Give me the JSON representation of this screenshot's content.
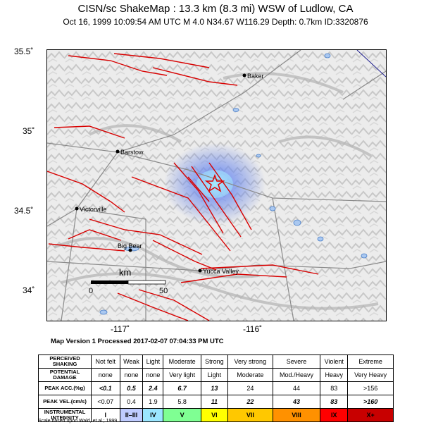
{
  "header": {
    "title": "CISN/sc ShakeMap : 13.3 km (8.3 mi) WSW of Ludlow, CA",
    "subtitle": "Oct 16, 1999 10:09:54 AM UTC   M 4.0   N34.67 W116.29   Depth: 0.7km   ID:3320876"
  },
  "axes": {
    "lat_labels": [
      "35.5˚",
      "35˚",
      "34.5˚",
      "34˚"
    ],
    "lon_labels": [
      "-117˚",
      "-116˚"
    ]
  },
  "map": {
    "cities": [
      {
        "name": "Baker"
      },
      {
        "name": "Barstow"
      },
      {
        "name": "Victorville"
      },
      {
        "name": "Big Bear"
      },
      {
        "name": "Yucca Valley"
      }
    ],
    "scalebar": {
      "unit": "km",
      "start": "0",
      "end": "50"
    },
    "epicenter_icon": "star-icon",
    "colors": {
      "fault": "#d80000",
      "water": "#4a7fc8",
      "road": "#8a8a8a",
      "shaking": "#5a78e0"
    }
  },
  "version_text": "Map Version 1 Processed 2017-02-07 07:04:33 PM UTC",
  "legend": {
    "row_headers": [
      "PERCEIVED SHAKING",
      "POTENTIAL DAMAGE",
      "PEAK ACC.(%g)",
      "PEAK VEL.(cm/s)",
      "INSTRUMENTAL INTENSITY"
    ],
    "shaking": [
      "Not felt",
      "Weak",
      "Light",
      "Moderate",
      "Strong",
      "Very strong",
      "Severe",
      "Violent",
      "Extreme"
    ],
    "damage": [
      "none",
      "none",
      "none",
      "Very light",
      "Light",
      "Moderate",
      "Mod./Heavy",
      "Heavy",
      "Very Heavy"
    ],
    "acc": [
      "<0.1",
      "0.5",
      "2.4",
      "6.7",
      "13",
      "24",
      "44",
      "83",
      ">156"
    ],
    "vel": [
      "<0.07",
      "0.4",
      "1.9",
      "5.8",
      "11",
      "22",
      "43",
      "83",
      ">160"
    ],
    "intensity": [
      "I",
      "II–III",
      "IV",
      "V",
      "VI",
      "VII",
      "VIII",
      "IX",
      "X+"
    ],
    "intensity_colors": [
      "#ffffff",
      "#bfccff",
      "#9be6ff",
      "#7fff93",
      "#ffff00",
      "#ffc800",
      "#ff9100",
      "#ff0000",
      "#c80000"
    ]
  },
  "scale_note": "Scale based upon Wald, et al.; 1999"
}
